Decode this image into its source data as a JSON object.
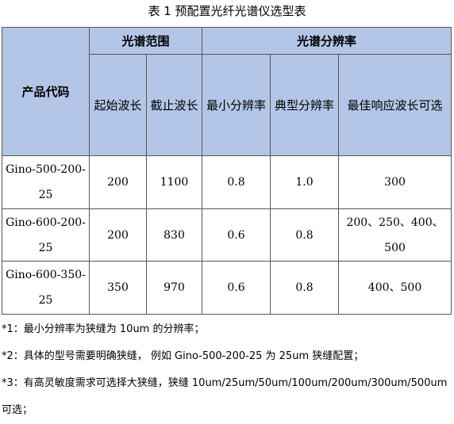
{
  "caption": "表 1   预配置光纤光谱仪选型表",
  "table": {
    "headers": {
      "code": "产品代码",
      "group_range": "光谱范围",
      "group_resolution": "光谱分辨率",
      "start_wavelength": "起始波长",
      "end_wavelength": "截止波长",
      "min_resolution": "最小分辨率",
      "typical_resolution": "典型分辨率",
      "best_response": "最佳响应波长可选"
    },
    "rows": [
      {
        "code": "Gino-500-200-25",
        "start": "200",
        "end": "1100",
        "min": "0.8",
        "typical": "1.0",
        "best": "300"
      },
      {
        "code": "Gino-600-200-25",
        "start": "200",
        "end": "830",
        "min": "0.6",
        "typical": "0.8",
        "best": "200、250、400、500"
      },
      {
        "code": "Gino-600-350-25",
        "start": "350",
        "end": "970",
        "min": "0.6",
        "typical": "0.8",
        "best": "400、500"
      }
    ]
  },
  "notes": [
    "*1：最小分辨率为狭缝为 10um 的分辨率；",
    "*2：具体的型号需要明确狭缝， 例如 Gino-500-200-25 为 25um 狭缝配置；",
    "*3：有高灵敏度需求可选择大狭缝，狭缝 10um/25um/50um/100um/200um/300um/500um 可选；"
  ],
  "colors": {
    "header_background": "#b4c6e7",
    "border": "#555555"
  }
}
